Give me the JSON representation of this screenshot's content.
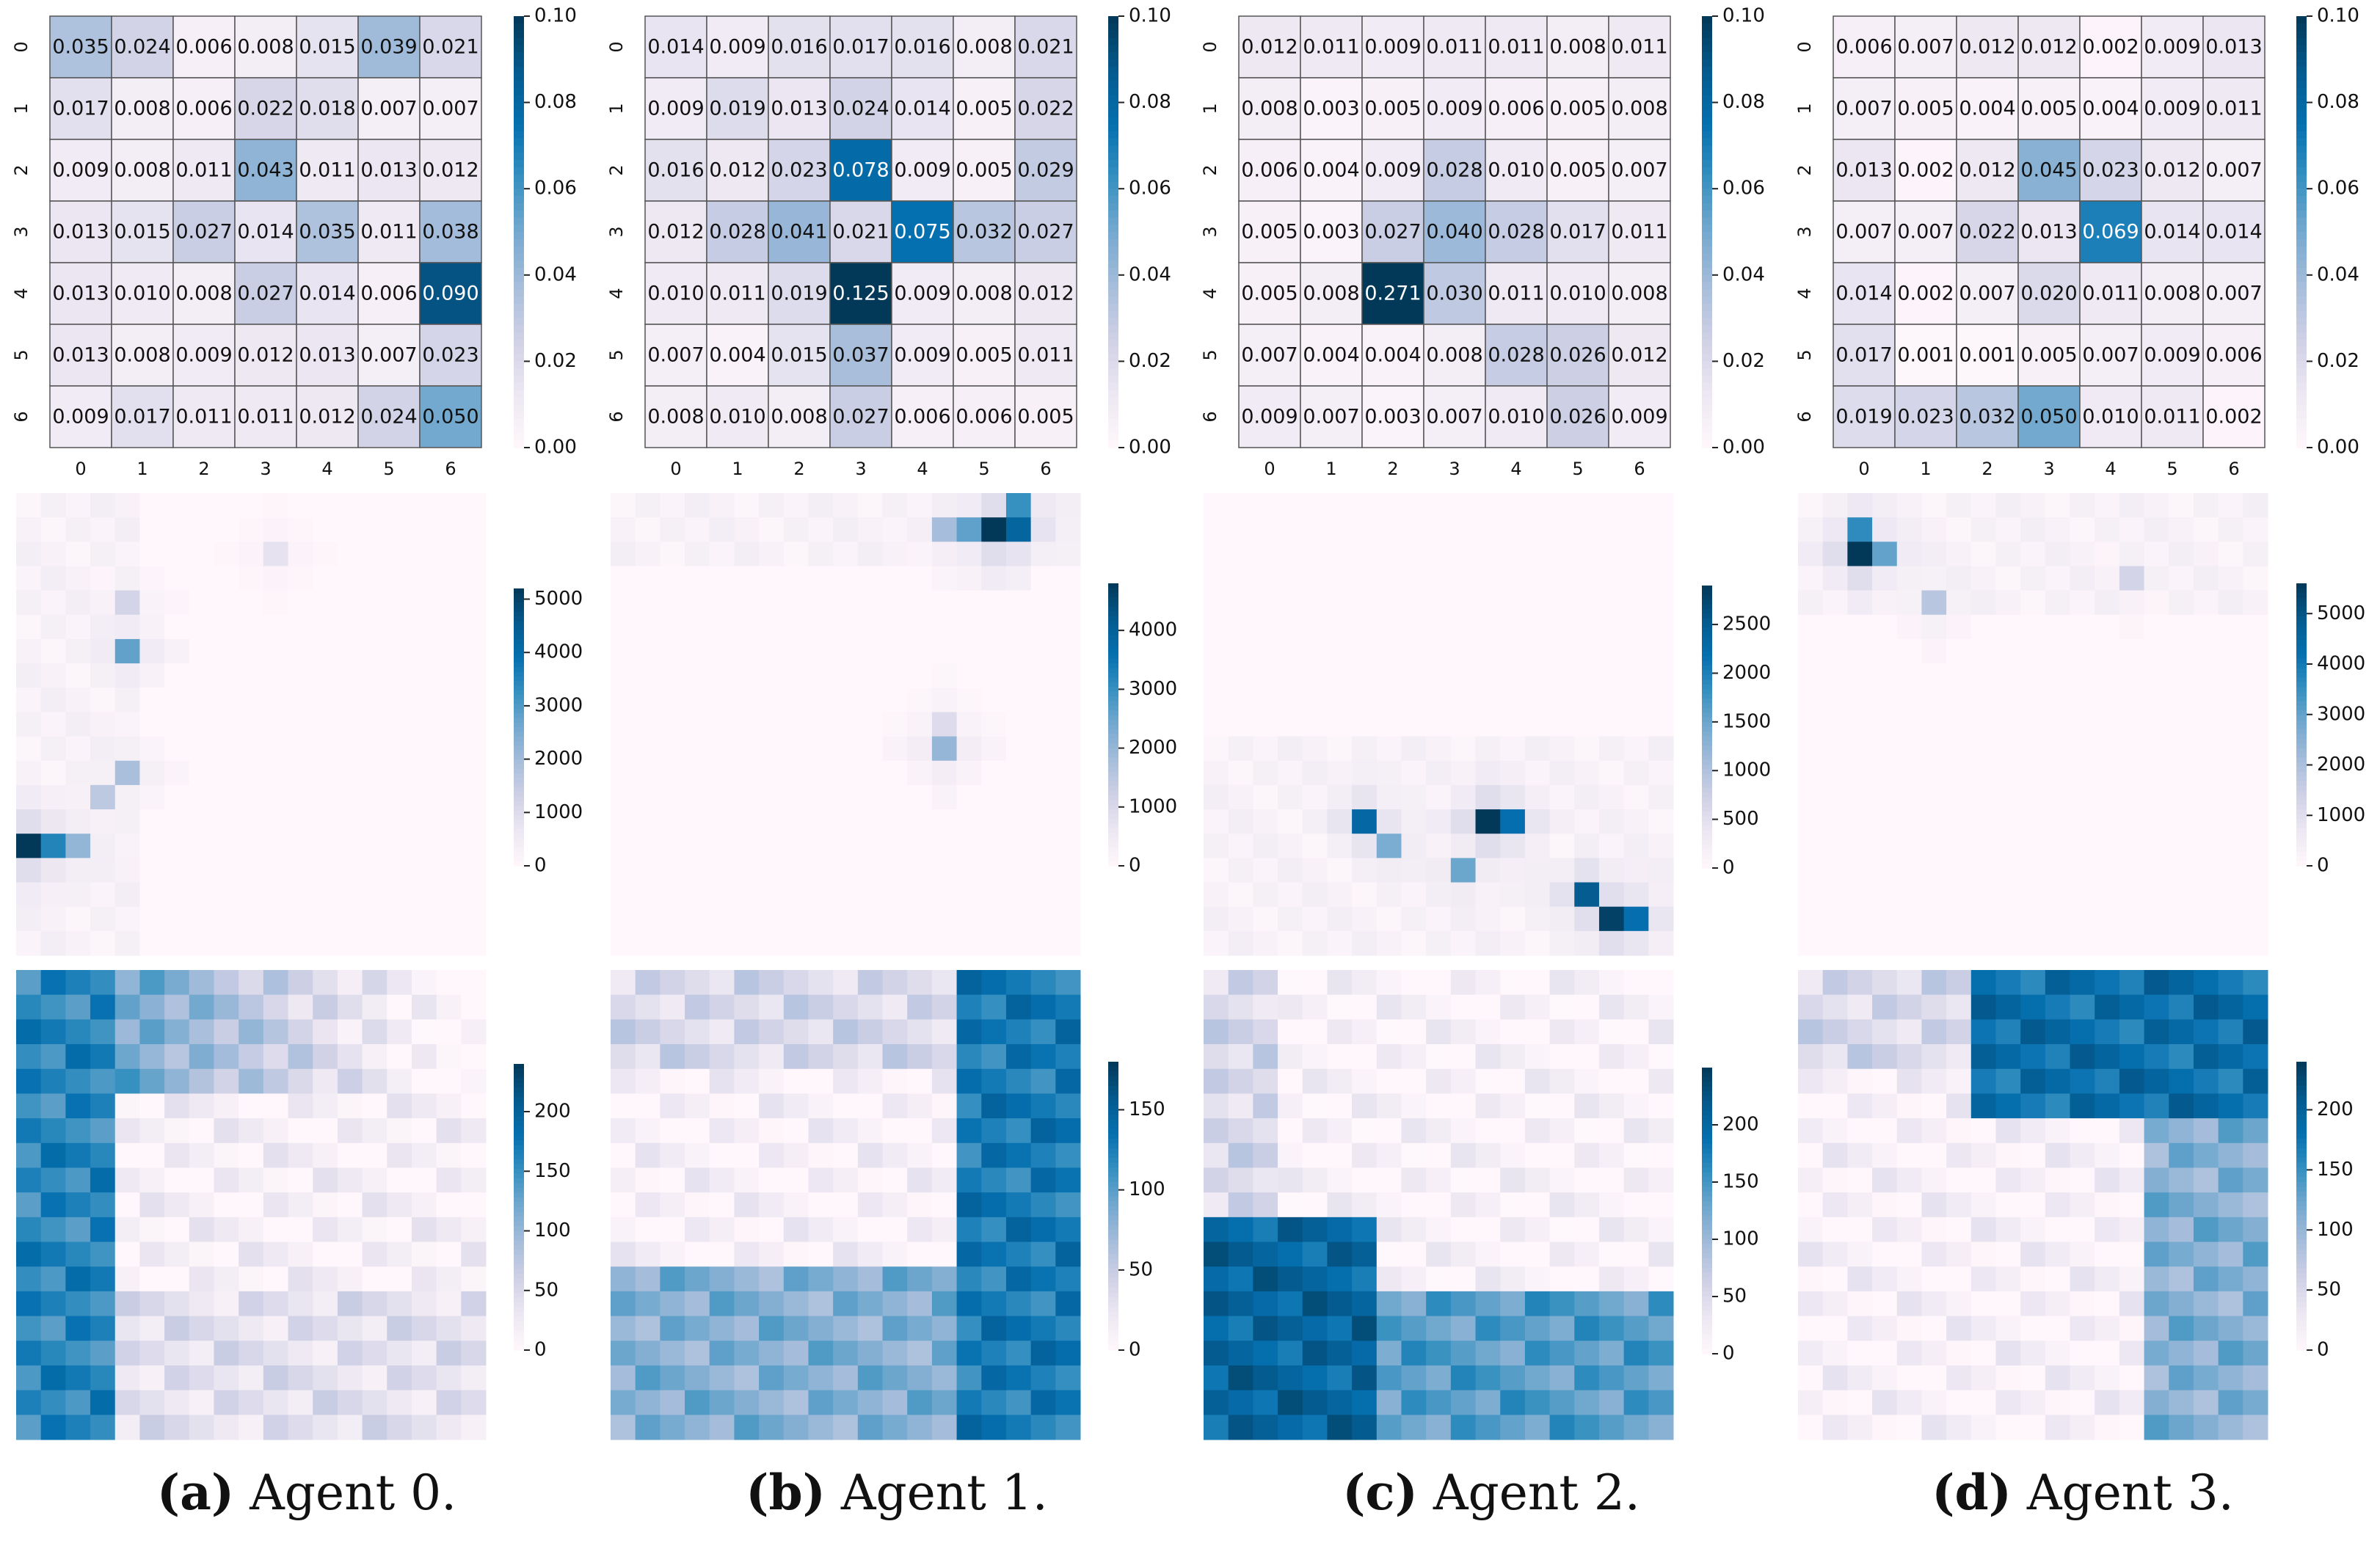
{
  "colors": {
    "colormap": [
      "#fff7fb",
      "#ece7f2",
      "#d0d1e6",
      "#a6bddb",
      "#74a9cf",
      "#3690c0",
      "#0570b0",
      "#045a8d",
      "#023858"
    ],
    "grid_line": "#555555",
    "text_dark": "#111111",
    "text_light": "#ffffff"
  },
  "captions": [
    {
      "letter": "(a)",
      "text": "Agent 0."
    },
    {
      "letter": "(b)",
      "text": "Agent 1."
    },
    {
      "letter": "(c)",
      "text": "Agent 2."
    },
    {
      "letter": "(d)",
      "text": "Agent 3."
    }
  ],
  "chart_data": [
    {
      "type": "heatmap",
      "agent": "Agent 0",
      "row": "transition",
      "x_ticks": [
        "0",
        "1",
        "2",
        "3",
        "4",
        "5",
        "6"
      ],
      "y_ticks": [
        "0",
        "1",
        "2",
        "3",
        "4",
        "5",
        "6"
      ],
      "vmin": 0,
      "vmax": 0.1,
      "colorbar_ticks": [
        "0.00",
        "0.02",
        "0.04",
        "0.06",
        "0.08",
        "0.10"
      ],
      "values": [
        [
          0.035,
          0.024,
          0.006,
          0.008,
          0.015,
          0.039,
          0.021
        ],
        [
          0.017,
          0.008,
          0.006,
          0.022,
          0.018,
          0.007,
          0.007
        ],
        [
          0.009,
          0.008,
          0.011,
          0.043,
          0.011,
          0.013,
          0.012
        ],
        [
          0.013,
          0.015,
          0.027,
          0.014,
          0.035,
          0.011,
          0.038
        ],
        [
          0.013,
          0.01,
          0.008,
          0.027,
          0.014,
          0.006,
          0.09
        ],
        [
          0.013,
          0.008,
          0.009,
          0.012,
          0.013,
          0.007,
          0.023
        ],
        [
          0.009,
          0.017,
          0.011,
          0.011,
          0.012,
          0.024,
          0.05
        ]
      ]
    },
    {
      "type": "heatmap",
      "agent": "Agent 1",
      "row": "transition",
      "x_ticks": [
        "0",
        "1",
        "2",
        "3",
        "4",
        "5",
        "6"
      ],
      "y_ticks": [
        "0",
        "1",
        "2",
        "3",
        "4",
        "5",
        "6"
      ],
      "vmin": 0,
      "vmax": 0.1,
      "colorbar_ticks": [
        "0.00",
        "0.02",
        "0.04",
        "0.06",
        "0.08",
        "0.10"
      ],
      "values": [
        [
          0.014,
          0.009,
          0.016,
          0.017,
          0.016,
          0.008,
          0.021
        ],
        [
          0.009,
          0.019,
          0.013,
          0.024,
          0.014,
          0.005,
          0.022
        ],
        [
          0.016,
          0.012,
          0.023,
          0.078,
          0.009,
          0.005,
          0.029
        ],
        [
          0.012,
          0.028,
          0.041,
          0.021,
          0.075,
          0.032,
          0.027
        ],
        [
          0.01,
          0.011,
          0.019,
          0.125,
          0.009,
          0.008,
          0.012
        ],
        [
          0.007,
          0.004,
          0.015,
          0.037,
          0.009,
          0.005,
          0.011
        ],
        [
          0.008,
          0.01,
          0.008,
          0.027,
          0.006,
          0.006,
          0.005
        ]
      ]
    },
    {
      "type": "heatmap",
      "agent": "Agent 2",
      "row": "transition",
      "x_ticks": [
        "0",
        "1",
        "2",
        "3",
        "4",
        "5",
        "6"
      ],
      "y_ticks": [
        "0",
        "1",
        "2",
        "3",
        "4",
        "5",
        "6"
      ],
      "vmin": 0,
      "vmax": 0.1,
      "colorbar_ticks": [
        "0.00",
        "0.02",
        "0.04",
        "0.06",
        "0.08",
        "0.10"
      ],
      "values": [
        [
          0.012,
          0.011,
          0.009,
          0.011,
          0.011,
          0.008,
          0.011
        ],
        [
          0.008,
          0.003,
          0.005,
          0.009,
          0.006,
          0.005,
          0.008
        ],
        [
          0.006,
          0.004,
          0.009,
          0.028,
          0.01,
          0.005,
          0.007
        ],
        [
          0.005,
          0.003,
          0.027,
          0.04,
          0.028,
          0.017,
          0.011
        ],
        [
          0.005,
          0.008,
          0.271,
          0.03,
          0.011,
          0.01,
          0.008
        ],
        [
          0.007,
          0.004,
          0.004,
          0.008,
          0.028,
          0.026,
          0.012
        ],
        [
          0.009,
          0.007,
          0.003,
          0.007,
          0.01,
          0.026,
          0.009
        ]
      ]
    },
    {
      "type": "heatmap",
      "agent": "Agent 3",
      "row": "transition",
      "x_ticks": [
        "0",
        "1",
        "2",
        "3",
        "4",
        "5",
        "6"
      ],
      "y_ticks": [
        "0",
        "1",
        "2",
        "3",
        "4",
        "5",
        "6"
      ],
      "vmin": 0,
      "vmax": 0.1,
      "colorbar_ticks": [
        "0.00",
        "0.02",
        "0.04",
        "0.06",
        "0.08",
        "0.10"
      ],
      "values": [
        [
          0.006,
          0.007,
          0.012,
          0.012,
          0.002,
          0.009,
          0.013
        ],
        [
          0.007,
          0.005,
          0.004,
          0.005,
          0.004,
          0.009,
          0.011
        ],
        [
          0.013,
          0.002,
          0.012,
          0.045,
          0.023,
          0.012,
          0.007
        ],
        [
          0.007,
          0.007,
          0.022,
          0.013,
          0.069,
          0.014,
          0.014
        ],
        [
          0.014,
          0.002,
          0.007,
          0.02,
          0.011,
          0.008,
          0.007
        ],
        [
          0.017,
          0.001,
          0.001,
          0.005,
          0.007,
          0.009,
          0.006
        ],
        [
          0.019,
          0.023,
          0.032,
          0.05,
          0.01,
          0.011,
          0.002
        ]
      ]
    },
    {
      "type": "heatmap",
      "agent": "Agent 0",
      "row": "visits-1",
      "grid": [
        19,
        19
      ],
      "vmin": 0,
      "vmax": 5200,
      "colorbar_ticks": [
        "0",
        "1000",
        "2000",
        "3000",
        "4000",
        "5000"
      ],
      "hotspots": [
        {
          "col": 0,
          "row": 14,
          "value": 5200
        },
        {
          "col": 1,
          "row": 14,
          "value": 3500
        },
        {
          "col": 2,
          "row": 14,
          "value": 2200
        },
        {
          "col": 4,
          "row": 6,
          "value": 2800
        },
        {
          "col": 4,
          "row": 11,
          "value": 1900
        },
        {
          "col": 3,
          "row": 12,
          "value": 1600
        },
        {
          "col": 4,
          "row": 4,
          "value": 1200
        },
        {
          "col": 10,
          "row": 2,
          "value": 800
        }
      ]
    },
    {
      "type": "heatmap",
      "agent": "Agent 1",
      "row": "visits-1",
      "grid": [
        19,
        19
      ],
      "vmin": 0,
      "vmax": 4800,
      "colorbar_ticks": [
        "0",
        "1000",
        "2000",
        "3000",
        "4000"
      ],
      "hotspots": [
        {
          "col": 15,
          "row": 1,
          "value": 4800
        },
        {
          "col": 16,
          "row": 1,
          "value": 3900
        },
        {
          "col": 16,
          "row": 0,
          "value": 3000
        },
        {
          "col": 14,
          "row": 1,
          "value": 2600
        },
        {
          "col": 13,
          "row": 1,
          "value": 1800
        },
        {
          "col": 13,
          "row": 10,
          "value": 2000
        },
        {
          "col": 13,
          "row": 9,
          "value": 900
        }
      ]
    },
    {
      "type": "heatmap",
      "agent": "Agent 2",
      "row": "visits-1",
      "grid": [
        19,
        19
      ],
      "vmin": 0,
      "vmax": 2900,
      "colorbar_ticks": [
        "0",
        "500",
        "1000",
        "1500",
        "2000",
        "2500"
      ],
      "hotspots": [
        {
          "col": 11,
          "row": 13,
          "value": 2900
        },
        {
          "col": 12,
          "row": 13,
          "value": 2200
        },
        {
          "col": 6,
          "row": 13,
          "value": 2300
        },
        {
          "col": 15,
          "row": 16,
          "value": 2500
        },
        {
          "col": 16,
          "row": 17,
          "value": 2800
        },
        {
          "col": 17,
          "row": 17,
          "value": 2200
        },
        {
          "col": 7,
          "row": 14,
          "value": 1400
        },
        {
          "col": 10,
          "row": 15,
          "value": 1500
        }
      ]
    },
    {
      "type": "heatmap",
      "agent": "Agent 3",
      "row": "visits-1",
      "grid": [
        19,
        19
      ],
      "vmin": 0,
      "vmax": 5600,
      "colorbar_ticks": [
        "0",
        "1000",
        "2000",
        "3000",
        "4000",
        "5000"
      ],
      "hotspots": [
        {
          "col": 2,
          "row": 2,
          "value": 5600
        },
        {
          "col": 2,
          "row": 1,
          "value": 3600
        },
        {
          "col": 3,
          "row": 2,
          "value": 3000
        },
        {
          "col": 5,
          "row": 4,
          "value": 1800
        },
        {
          "col": 13,
          "row": 3,
          "value": 1300
        }
      ]
    },
    {
      "type": "heatmap",
      "agent": "Agent 0",
      "row": "visits-2",
      "grid": [
        19,
        19
      ],
      "vmin": 0,
      "vmax": 240,
      "colorbar_ticks": [
        "0",
        "50",
        "100",
        "150",
        "200"
      ],
      "dense_region": "left and top-left"
    },
    {
      "type": "heatmap",
      "agent": "Agent 1",
      "row": "visits-2",
      "grid": [
        19,
        19
      ],
      "vmin": 0,
      "vmax": 180,
      "colorbar_ticks": [
        "0",
        "50",
        "100",
        "150"
      ],
      "dense_region": "right and bottom-right"
    },
    {
      "type": "heatmap",
      "agent": "Agent 2",
      "row": "visits-2",
      "grid": [
        19,
        19
      ],
      "vmin": 0,
      "vmax": 250,
      "colorbar_ticks": [
        "0",
        "50",
        "100",
        "150",
        "200"
      ],
      "dense_region": "bottom-left"
    },
    {
      "type": "heatmap",
      "agent": "Agent 3",
      "row": "visits-2",
      "grid": [
        19,
        19
      ],
      "vmin": 0,
      "vmax": 240,
      "colorbar_ticks": [
        "0",
        "50",
        "100",
        "150",
        "200"
      ],
      "dense_region": "top-right"
    }
  ]
}
